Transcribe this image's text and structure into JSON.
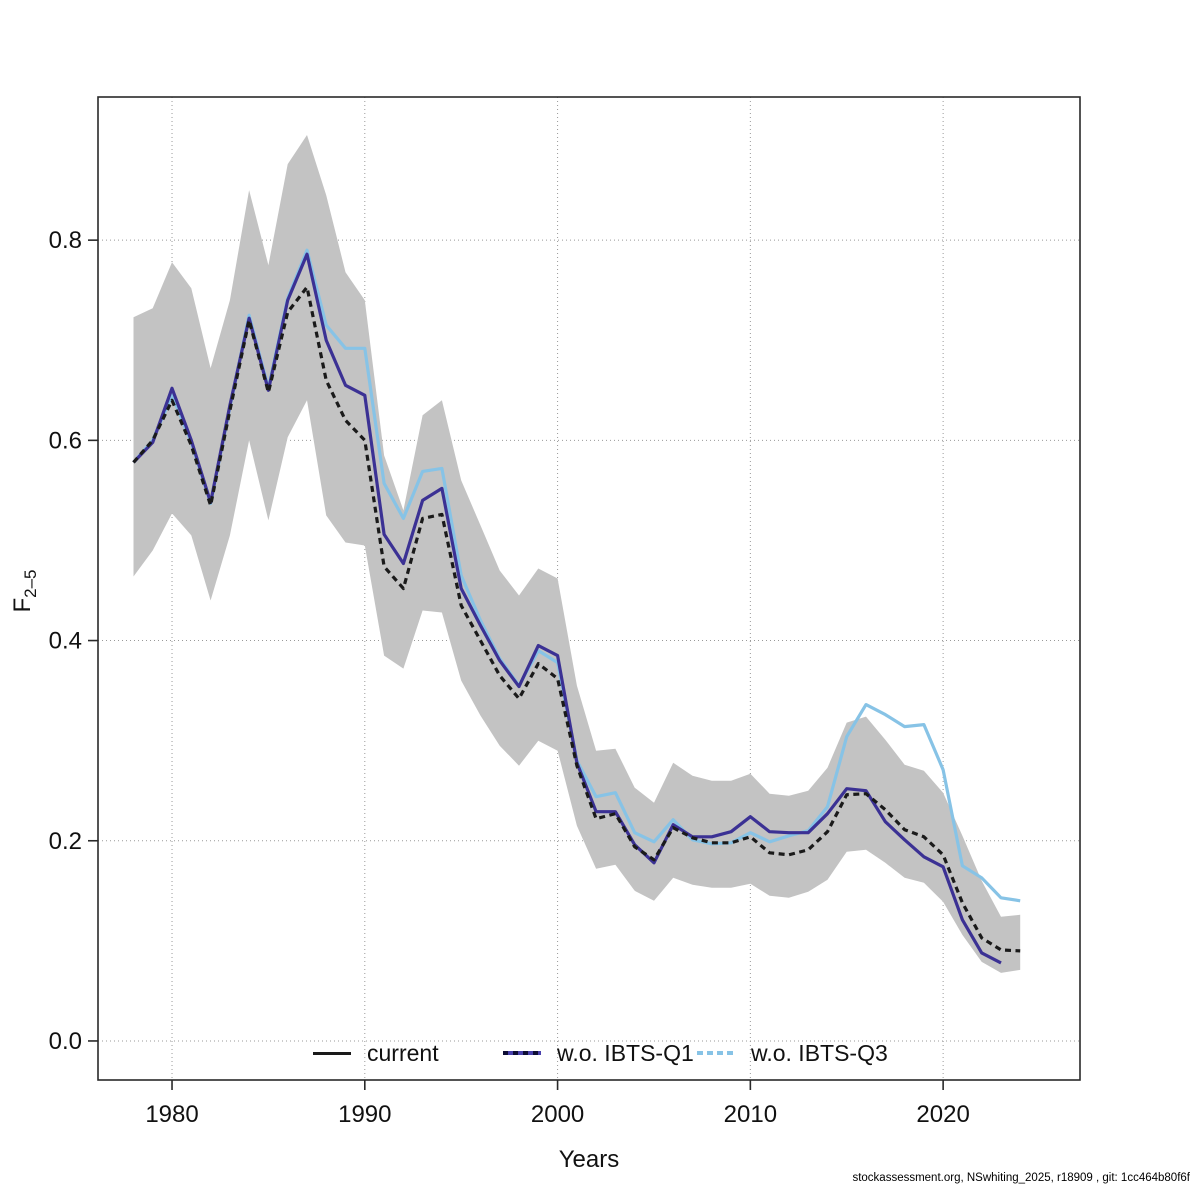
{
  "figure": {
    "footer": "stockassessment.org, NSwhiting_2025, r18909 , git: 1cc464b80f6f"
  },
  "legend": {
    "position": "bottom-center-inside",
    "items": [
      {
        "label": "current",
        "style": "solid-black"
      },
      {
        "label": "w.o. IBTS-Q1",
        "style": "solid-purple-dashed-black"
      },
      {
        "label": "w.o. IBTS-Q3",
        "style": "dashed-lightblue"
      }
    ]
  },
  "chart_data": {
    "type": "line",
    "title": "",
    "xlabel": "Years",
    "ylabel": "F",
    "ylabel_subscript": "2–5",
    "grid": true,
    "xlim": [
      1976.16,
      2027.1
    ],
    "ylim": [
      -0.039,
      0.943
    ],
    "x_ticks": [
      1980,
      1990,
      2000,
      2010,
      2020
    ],
    "x_tick_labels": [
      "1980",
      "1990",
      "2000",
      "2010",
      "2020"
    ],
    "y_ticks": [
      0.0,
      0.2,
      0.4,
      0.6,
      0.8
    ],
    "y_tick_labels": [
      "0.0",
      "0.2",
      "0.4",
      "0.6",
      "0.8"
    ],
    "x": [
      1978,
      1979,
      1980,
      1981,
      1982,
      1983,
      1984,
      1985,
      1986,
      1987,
      1988,
      1989,
      1990,
      1991,
      1992,
      1993,
      1994,
      1995,
      1996,
      1997,
      1998,
      1999,
      2000,
      2001,
      2002,
      2003,
      2004,
      2005,
      2006,
      2007,
      2008,
      2009,
      2010,
      2011,
      2012,
      2013,
      2014,
      2015,
      2016,
      2017,
      2018,
      2019,
      2020,
      2021,
      2022,
      2023,
      2024
    ],
    "series": [
      {
        "name": "current",
        "color": "#1a1a1a",
        "style": "dashed",
        "values": [
          0.578,
          0.6,
          0.64,
          0.595,
          0.535,
          0.63,
          0.72,
          0.648,
          0.728,
          0.753,
          0.66,
          0.62,
          0.6,
          0.474,
          0.452,
          0.522,
          0.526,
          0.435,
          0.4,
          0.365,
          0.342,
          0.377,
          0.362,
          0.275,
          0.222,
          0.227,
          0.194,
          0.181,
          0.213,
          0.203,
          0.198,
          0.198,
          0.204,
          0.188,
          0.186,
          0.191,
          0.209,
          0.246,
          0.247,
          0.231,
          0.211,
          0.204,
          0.186,
          0.138,
          0.103,
          0.091,
          0.09
        ]
      },
      {
        "name": "w.o. IBTS-Q1",
        "color": "#3b3194",
        "style": "solid",
        "values": [
          0.578,
          0.598,
          0.652,
          0.6,
          0.538,
          0.635,
          0.722,
          0.65,
          0.74,
          0.786,
          0.7,
          0.655,
          0.645,
          0.506,
          0.477,
          0.54,
          0.552,
          0.452,
          0.415,
          0.38,
          0.354,
          0.395,
          0.385,
          0.278,
          0.229,
          0.229,
          0.196,
          0.178,
          0.216,
          0.204,
          0.204,
          0.209,
          0.224,
          0.209,
          0.208,
          0.208,
          0.227,
          0.252,
          0.25,
          0.219,
          0.201,
          0.184,
          0.174,
          0.121,
          0.088,
          0.078,
          null
        ]
      },
      {
        "name": "w.o. IBTS-Q3",
        "color": "#87c3e6",
        "style": "solid",
        "values": [
          0.578,
          0.6,
          0.645,
          0.598,
          0.537,
          0.633,
          0.725,
          0.652,
          0.742,
          0.79,
          0.715,
          0.692,
          0.692,
          0.557,
          0.522,
          0.569,
          0.572,
          0.465,
          0.42,
          0.382,
          0.355,
          0.39,
          0.378,
          0.28,
          0.244,
          0.248,
          0.208,
          0.199,
          0.221,
          0.201,
          0.197,
          0.198,
          0.208,
          0.199,
          0.205,
          0.21,
          0.234,
          0.304,
          0.336,
          0.326,
          0.314,
          0.316,
          0.271,
          0.175,
          0.163,
          0.143,
          0.14
        ]
      }
    ],
    "band": {
      "series": "current",
      "color": "#c3c3c3",
      "lo": [
        0.464,
        0.49,
        0.527,
        0.505,
        0.44,
        0.505,
        0.6,
        0.52,
        0.603,
        0.64,
        0.525,
        0.498,
        0.495,
        0.385,
        0.372,
        0.43,
        0.428,
        0.36,
        0.325,
        0.295,
        0.275,
        0.3,
        0.29,
        0.215,
        0.172,
        0.176,
        0.15,
        0.14,
        0.163,
        0.156,
        0.153,
        0.153,
        0.157,
        0.145,
        0.143,
        0.149,
        0.161,
        0.189,
        0.191,
        0.178,
        0.163,
        0.158,
        0.139,
        0.106,
        0.079,
        0.068,
        0.071
      ],
      "hi": [
        0.723,
        0.732,
        0.778,
        0.752,
        0.672,
        0.74,
        0.85,
        0.775,
        0.876,
        0.905,
        0.845,
        0.768,
        0.74,
        0.585,
        0.53,
        0.625,
        0.64,
        0.56,
        0.515,
        0.47,
        0.445,
        0.472,
        0.462,
        0.355,
        0.29,
        0.292,
        0.253,
        0.238,
        0.278,
        0.265,
        0.26,
        0.26,
        0.267,
        0.247,
        0.245,
        0.25,
        0.273,
        0.318,
        0.324,
        0.301,
        0.276,
        0.27,
        0.248,
        0.205,
        0.16,
        0.124,
        0.126
      ]
    }
  }
}
